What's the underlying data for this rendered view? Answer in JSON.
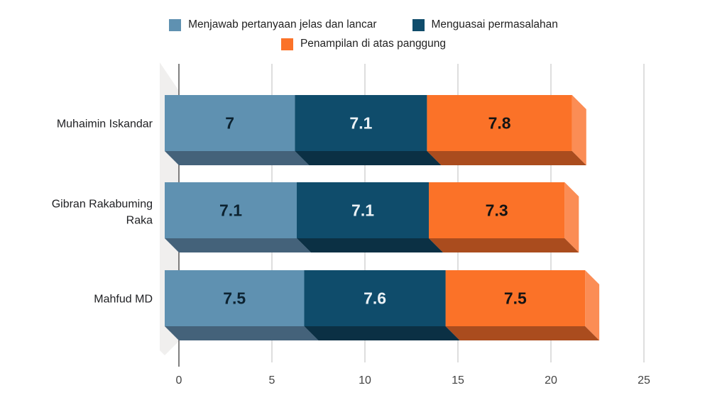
{
  "legend": {
    "items": [
      {
        "label": "Menjawab pertanyaan jelas dan lancar",
        "color": "#5f91b1"
      },
      {
        "label": "Menguasai permasalahan",
        "color": "#0f4c6b"
      },
      {
        "label": "Penampilan di atas panggung",
        "color": "#fb7228"
      }
    ],
    "rows": [
      [
        0,
        1
      ],
      [
        2
      ]
    ]
  },
  "chart_data": {
    "type": "bar",
    "orientation": "horizontal",
    "stacked": true,
    "effect_3d": true,
    "title": "",
    "xlabel": "",
    "ylabel": "",
    "categories": [
      "Muhaimin Iskandar",
      "Gibran Rakabuming Raka",
      "Mahfud MD"
    ],
    "series": [
      {
        "name": "Menjawab pertanyaan jelas dan lancar",
        "values": [
          7,
          7.1,
          7.5
        ],
        "color": "#5f91b1",
        "shade_bottom": "#44627a",
        "shade_side": "#82a7c0",
        "label_color": "#0c2230"
      },
      {
        "name": "Menguasai permasalahan",
        "values": [
          7.1,
          7.1,
          7.6
        ],
        "color": "#0f4c6b",
        "shade_bottom": "#0b3044",
        "shade_side": "#2f6885",
        "label_color": "#eaf1f5"
      },
      {
        "name": "Penampilan di atas panggung",
        "values": [
          7.8,
          7.3,
          7.5
        ],
        "color": "#fb7228",
        "shade_bottom": "#aa4c1e",
        "shade_side": "#fb8d55",
        "label_color": "#141414"
      }
    ],
    "x_ticks": [
      0,
      5,
      10,
      15,
      20,
      25
    ],
    "xlim": [
      0,
      25
    ],
    "grid": true,
    "legend_position": "top",
    "colors": {
      "gridline": "#cccccc",
      "axis_line": "#4a4a4a",
      "wall": "#f0efee",
      "tick_label": "#444444",
      "category_label": "#202124",
      "background": "#ffffff"
    }
  }
}
